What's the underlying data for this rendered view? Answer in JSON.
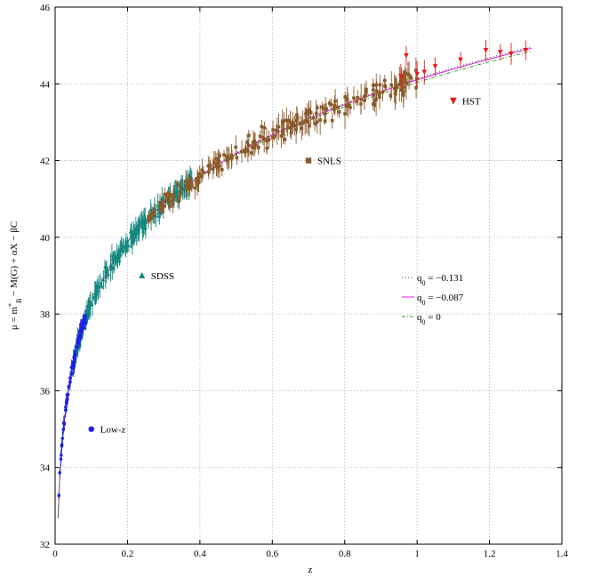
{
  "chart_data": {
    "type": "scatter",
    "xlabel": "z",
    "ylabel_parts": [
      "μ = m",
      "*",
      "B",
      " − M(G) + αX − βC"
    ],
    "xlim": [
      0,
      1.4
    ],
    "ylim": [
      32,
      46
    ],
    "x_ticks": [
      "0",
      "0.2",
      "0.4",
      "0.6",
      "0.8",
      "1",
      "1.2",
      "1.4"
    ],
    "y_ticks": [
      "32",
      "34",
      "36",
      "38",
      "40",
      "42",
      "44",
      "46"
    ],
    "grid": true,
    "colors": {
      "low_z": "#1f1fe6",
      "sdss": "#13877f",
      "snls": "#8b5a2b",
      "hst": "#e41a1c",
      "q_m0131": "#333333",
      "q_m0087": "#e01ee0",
      "q_0": "#2ca02c"
    },
    "series": [
      {
        "name": "Low-z",
        "marker": "circle",
        "z_range": [
          0.01,
          0.085
        ],
        "label_position": [
          0.1,
          35.0
        ]
      },
      {
        "name": "SDSS",
        "marker": "triangle",
        "z_range": [
          0.05,
          0.38
        ],
        "label_position": [
          0.24,
          39.0
        ]
      },
      {
        "name": "SNLS",
        "marker": "square",
        "z_range": [
          0.25,
          1.0
        ],
        "label_position": [
          0.7,
          42.0
        ]
      },
      {
        "name": "HST",
        "marker": "triangle-down",
        "z_range": [
          0.95,
          1.3
        ],
        "label_position": [
          1.1,
          43.55
        ]
      }
    ],
    "legend": {
      "placement": "right-middle",
      "entries": [
        {
          "q": "q",
          "sub": "0",
          "value": " = −0.131"
        },
        {
          "q": "q",
          "sub": "0",
          "value": " = −0.087"
        },
        {
          "q": "q",
          "sub": "0",
          "value": " = 0"
        }
      ]
    },
    "model_curves": [
      {
        "q0": -0.131,
        "z_max": 1.32
      },
      {
        "q0": -0.087,
        "z_max": 1.32
      },
      {
        "q0": 0,
        "z_max": 1.32
      }
    ],
    "H0": 70,
    "hst_points": [
      {
        "z": 0.97,
        "mu": 44.73
      },
      {
        "z": 1.02,
        "mu": 44.3
      },
      {
        "z": 1.12,
        "mu": 44.62
      },
      {
        "z": 1.19,
        "mu": 44.87
      },
      {
        "z": 1.23,
        "mu": 44.82
      },
      {
        "z": 1.26,
        "mu": 44.78
      },
      {
        "z": 1.3,
        "mu": 44.87
      },
      {
        "z": 1.0,
        "mu": 44.25
      },
      {
        "z": 0.955,
        "mu": 44.2
      },
      {
        "z": 1.05,
        "mu": 44.45
      }
    ]
  }
}
